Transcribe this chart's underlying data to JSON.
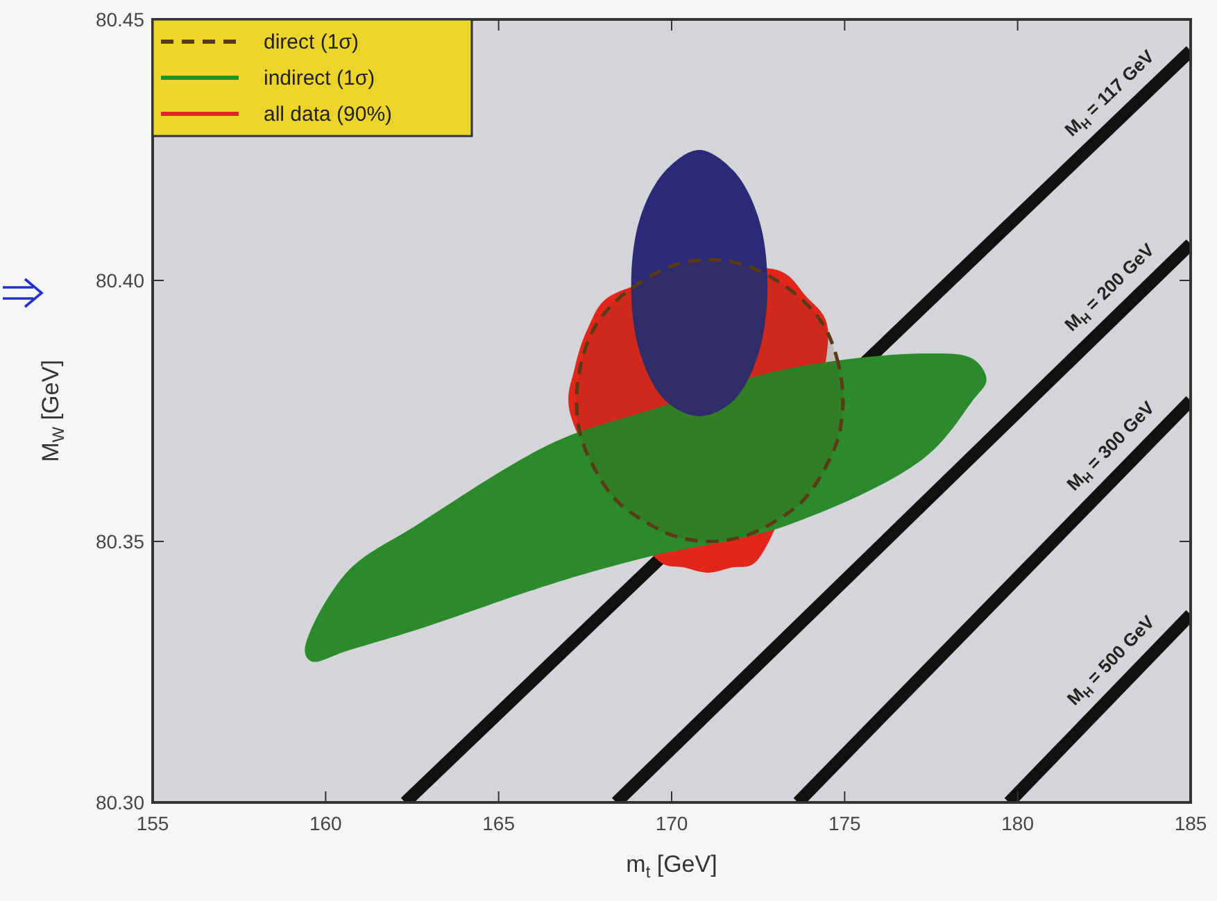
{
  "chart_data": {
    "type": "line",
    "xlabel": "m$_{t}$ [GeV]",
    "ylabel": "M$_{W}$ [GeV]",
    "xlim": [
      155,
      185
    ],
    "xticks": [
      155,
      160,
      165,
      170,
      175,
      180,
      185
    ],
    "ylim": [
      80.3,
      80.45
    ],
    "yticks": [
      {
        "value": 80.3,
        "label": "80.30"
      },
      80.35,
      {
        "value": 80.4,
        "label": "80.40"
      },
      80.45
    ],
    "grid": false,
    "legend": "top left",
    "marker": "none",
    "series": [
      {
        "name": "M$_{H}$ = 117 GeV",
        "color": "#111111",
        "x": [
          162.3,
          185
        ],
        "values": [
          80.3,
          80.444
        ]
      },
      {
        "name": "M$_{H}$ = 200 GeV",
        "color": "#111111",
        "x": [
          168.4,
          185
        ],
        "values": [
          80.3,
          80.407
        ]
      },
      {
        "name": "M$_{H}$ = 300 GeV",
        "color": "#111111",
        "x": [
          173.65,
          185
        ],
        "values": [
          80.3,
          80.377
        ]
      },
      {
        "name": "M$_{H}$ = 500 GeV",
        "color": "#111111",
        "x": [
          179.75,
          185
        ],
        "values": [
          80.3,
          80.336
        ]
      },
      {
        "name": "all data (90%)",
        "type": "area",
        "color": "#e3261c",
        "x": [
          174.51,
          173.88,
          173.05,
          168.22,
          167.59,
          167.19,
          167.05,
          169.68,
          170.36,
          171.05,
          171.74,
          172.42
        ],
        "values": [
          80.391,
          80.397,
          80.402,
          80.397,
          80.391,
          80.383,
          80.375,
          80.346,
          80.345,
          80.344,
          80.345,
          80.346
        ]
      },
      {
        "name": "indirect (1σ)",
        "type": "area",
        "color": "#2b8a2b",
        "x": [
          159.4,
          160.6,
          162.6,
          166.6,
          169.3,
          173.3,
          177.3,
          178.7,
          179.1,
          178.7,
          177.3,
          173.3,
          169.3,
          166.6,
          162.6,
          160.6,
          159.6
        ],
        "values": [
          80.329,
          80.344,
          80.353,
          80.369,
          80.375,
          80.383,
          80.386,
          80.385,
          80.381,
          80.377,
          80.366,
          80.353,
          80.347,
          80.342,
          80.333,
          80.329,
          80.327
        ]
      },
      {
        "type": "area",
        "color": "#2a2a78",
        "x": [
          172.77,
          172.51,
          171.79,
          170.8,
          169.82,
          169.09,
          168.83,
          169.09,
          169.82,
          170.8,
          171.79,
          172.51
        ],
        "values": [
          80.399,
          80.412,
          80.421,
          80.425,
          80.421,
          80.412,
          80.399,
          80.386,
          80.377,
          80.374,
          80.377,
          80.386
        ]
      },
      {
        "name": "direct (1σ)",
        "type": "area",
        "line_style": "dashed",
        "color": "#5a3a14",
        "x": [
          174.95,
          174.82,
          174.43,
          173.82,
          173.03,
          172.1,
          171.1,
          170.1,
          169.18,
          168.38,
          167.77,
          167.38,
          167.25,
          167.38,
          167.77,
          168.38,
          169.18,
          170.1,
          171.1,
          172.1,
          173.03,
          173.82,
          174.43,
          174.82
        ],
        "values": [
          80.377,
          80.384,
          80.391,
          80.396,
          80.4,
          80.403,
          80.404,
          80.403,
          80.4,
          80.396,
          80.391,
          80.384,
          80.377,
          80.37,
          80.364,
          80.358,
          80.354,
          80.351,
          80.35,
          80.351,
          80.354,
          80.358,
          80.364,
          80.37
        ]
      }
    ]
  }
}
